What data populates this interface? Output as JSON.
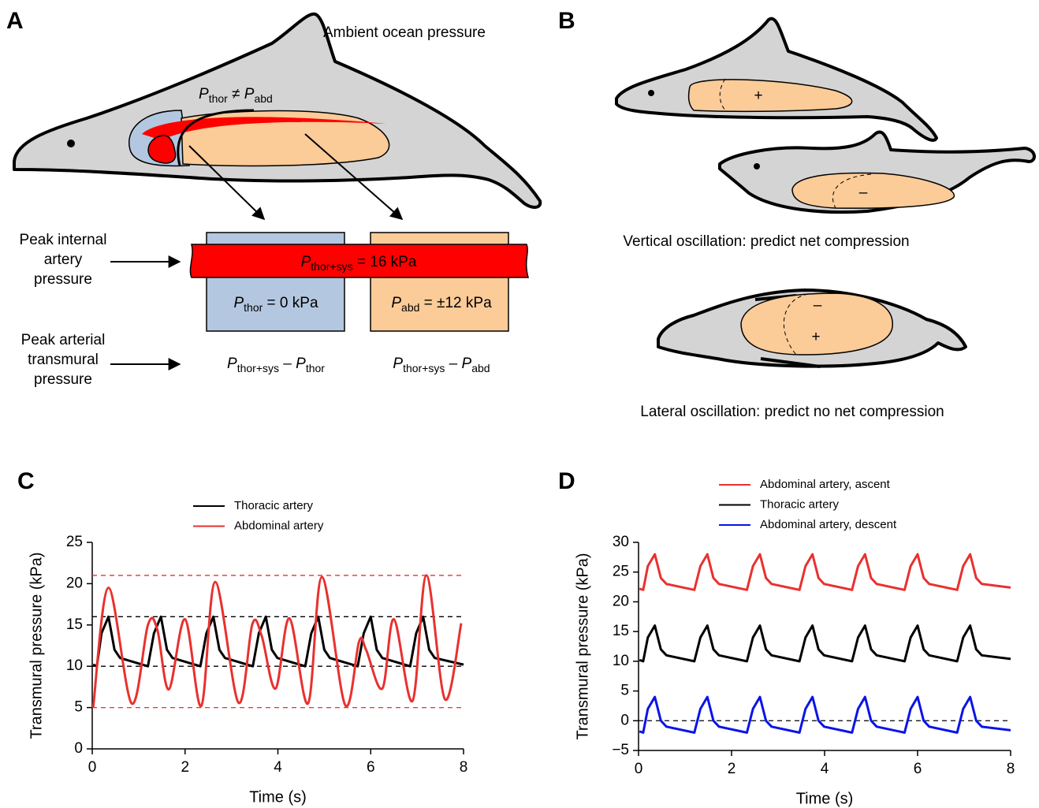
{
  "panel_a": {
    "label": "A",
    "ambient": "Ambient ocean pressure",
    "pressure_relation": [
      "P",
      "thor",
      " ≠ P",
      "abd"
    ],
    "internal_label": [
      "Peak internal",
      "artery",
      "pressure"
    ],
    "artery": [
      "P",
      "thor+sys",
      " = 16 kPa"
    ],
    "thorax": [
      "P",
      "thor",
      " = 0 kPa"
    ],
    "abdomen": [
      "P",
      "abd",
      " = ±12 kPa"
    ],
    "transmural_label": [
      "Peak arterial",
      "transmural",
      "pressure"
    ],
    "thorax_transmural": [
      "P",
      "thor+sys",
      " – P",
      "thor"
    ],
    "abdomen_transmural": [
      "P",
      "thor+sys",
      " – P",
      "abd"
    ]
  },
  "panel_b": {
    "label": "B",
    "signs": [
      "+",
      "–",
      "–",
      "+"
    ],
    "vertical": "Vertical oscillation: predict net compression",
    "lateral": "Lateral oscillation: predict no net compression"
  },
  "chart_data": [
    {
      "type": "line",
      "panel_label": "C",
      "xlabel": "Time (s)",
      "ylabel": "Transmural pressure (kPa)",
      "xlim": [
        0,
        8
      ],
      "xticks": [
        0,
        2,
        4,
        6,
        8
      ],
      "ylim": [
        0,
        25
      ],
      "yticks": [
        0,
        5,
        10,
        15,
        20,
        25
      ],
      "legend": "top",
      "reference_lines": [
        {
          "value": 21,
          "color": "#e8312f"
        },
        {
          "value": 16,
          "color": "#000000"
        },
        {
          "value": 10,
          "color": "#000000"
        },
        {
          "value": 5,
          "color": "#e8312f"
        }
      ],
      "series": [
        {
          "name": "Thoracic artery",
          "color": "#000000",
          "x": [
            0.02,
            0.1,
            0.2,
            0.35,
            0.48,
            0.6,
            1.2,
            1.33,
            1.48,
            1.61,
            1.73,
            2.33,
            2.46,
            2.61,
            2.74,
            2.86,
            3.46,
            3.59,
            3.74,
            3.87,
            3.99,
            4.59,
            4.72,
            4.87,
            5.0,
            5.12,
            5.72,
            5.85,
            6.0,
            6.13,
            6.25,
            6.85,
            6.98,
            7.13,
            7.26,
            7.38,
            8.0
          ],
          "values": [
            10.2,
            10,
            14,
            16,
            12,
            11,
            10,
            14,
            16,
            12,
            11,
            10,
            14,
            16,
            12,
            11,
            10,
            14,
            16,
            12,
            11,
            10,
            14,
            16,
            12,
            11,
            10,
            14,
            16,
            12,
            11,
            10,
            14,
            16,
            12,
            11,
            10.2
          ]
        },
        {
          "name": "Abdominal artery",
          "color": "#e8312f",
          "smooth": true,
          "x": [
            0.02,
            0.35,
            0.85,
            1.2,
            1.4,
            1.65,
            2.0,
            2.35,
            2.65,
            3.15,
            3.45,
            3.65,
            3.95,
            4.25,
            4.65,
            4.95,
            5.45,
            5.75,
            5.9,
            6.25,
            6.5,
            6.9,
            7.2,
            7.6,
            7.95
          ],
          "values": [
            5,
            19.5,
            5.5,
            15,
            14.5,
            7.2,
            15.7,
            5.2,
            20.2,
            5.6,
            15.1,
            13.7,
            7.3,
            15.8,
            5.5,
            20.8,
            5.3,
            13,
            12,
            7.3,
            15.7,
            5.8,
            21,
            6,
            15.2
          ]
        }
      ]
    },
    {
      "type": "line",
      "panel_label": "D",
      "xlabel": "Time (s)",
      "ylabel": "Transmural pressure (kPa)",
      "xlim": [
        0,
        8
      ],
      "xticks": [
        0,
        2,
        4,
        6,
        8
      ],
      "ylim": [
        -5,
        30
      ],
      "yticks": [
        {
          "value": -5,
          "label": "−5"
        },
        0,
        5,
        10,
        15,
        20,
        25,
        30
      ],
      "legend": "top",
      "reference_lines": [
        {
          "value": 0,
          "color": "#000000"
        }
      ],
      "series": [
        {
          "name": "Abdominal artery, ascent",
          "color": "#e8312f",
          "x": [
            0.02,
            0.1,
            0.2,
            0.35,
            0.48,
            0.6,
            1.2,
            1.33,
            1.48,
            1.61,
            1.73,
            2.33,
            2.46,
            2.61,
            2.74,
            2.86,
            3.46,
            3.59,
            3.74,
            3.87,
            3.99,
            4.59,
            4.72,
            4.87,
            5.0,
            5.12,
            5.72,
            5.85,
            6.0,
            6.13,
            6.25,
            6.85,
            6.98,
            7.13,
            7.26,
            7.38,
            8.0
          ],
          "values": [
            22.2,
            22,
            26,
            28,
            24,
            23,
            22,
            26,
            28,
            24,
            23,
            22,
            26,
            28,
            24,
            23,
            22,
            26,
            28,
            24,
            23,
            22,
            26,
            28,
            24,
            23,
            22,
            26,
            28,
            24,
            23,
            22,
            26,
            28,
            24,
            23,
            22.4
          ]
        },
        {
          "name": "Thoracic artery",
          "color": "#000000",
          "x": [
            0.02,
            0.1,
            0.2,
            0.35,
            0.48,
            0.6,
            1.2,
            1.33,
            1.48,
            1.61,
            1.73,
            2.33,
            2.46,
            2.61,
            2.74,
            2.86,
            3.46,
            3.59,
            3.74,
            3.87,
            3.99,
            4.59,
            4.72,
            4.87,
            5.0,
            5.12,
            5.72,
            5.85,
            6.0,
            6.13,
            6.25,
            6.85,
            6.98,
            7.13,
            7.26,
            7.38,
            8.0
          ],
          "values": [
            10.2,
            10,
            14,
            16,
            12,
            11,
            10,
            14,
            16,
            12,
            11,
            10,
            14,
            16,
            12,
            11,
            10,
            14,
            16,
            12,
            11,
            10,
            14,
            16,
            12,
            11,
            10,
            14,
            16,
            12,
            11,
            10,
            14,
            16,
            12,
            11,
            10.4
          ]
        },
        {
          "name": "Abdominal artery, descent",
          "color": "#0a14e6",
          "x": [
            0.02,
            0.1,
            0.2,
            0.35,
            0.48,
            0.6,
            1.2,
            1.33,
            1.48,
            1.61,
            1.73,
            2.33,
            2.46,
            2.61,
            2.74,
            2.86,
            3.46,
            3.59,
            3.74,
            3.87,
            3.99,
            4.59,
            4.72,
            4.87,
            5.0,
            5.12,
            5.72,
            5.85,
            6.0,
            6.13,
            6.25,
            6.85,
            6.98,
            7.13,
            7.26,
            7.38,
            8.0
          ],
          "values": [
            -1.8,
            -2,
            2,
            4,
            0,
            -1,
            -2,
            2,
            4,
            0,
            -1,
            -2,
            2,
            4,
            0,
            -1,
            -2,
            2,
            4,
            0,
            -1,
            -2,
            2,
            4,
            0,
            -1,
            -2,
            2,
            4,
            0,
            -1,
            -2,
            2,
            4,
            0,
            -1,
            -1.6
          ]
        }
      ]
    }
  ]
}
